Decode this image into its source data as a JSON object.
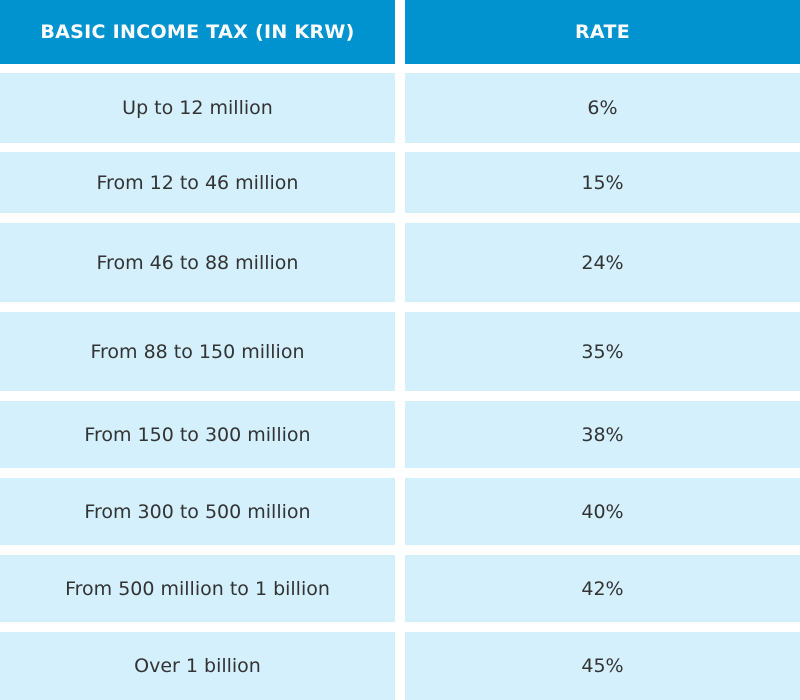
{
  "colors": {
    "header_bg": "#0093d0",
    "row_bg": "#d3f0fc",
    "header_text": "#ffffff",
    "body_text": "#333333"
  },
  "table": {
    "headers": [
      "BASIC INCOME TAX (IN KRW)",
      "RATE"
    ],
    "rows": [
      [
        "Up to 12 million",
        "6%"
      ],
      [
        "From 12 to 46 million",
        "15%"
      ],
      [
        "From 46 to 88 million",
        "24%"
      ],
      [
        "From 88 to 150 million",
        "35%"
      ],
      [
        "From 150 to 300 million",
        "38%"
      ],
      [
        "From 300 to 500 million",
        "40%"
      ],
      [
        "From 500 million to 1 billion",
        "42%"
      ],
      [
        "Over 1 billion",
        "45%"
      ]
    ]
  }
}
